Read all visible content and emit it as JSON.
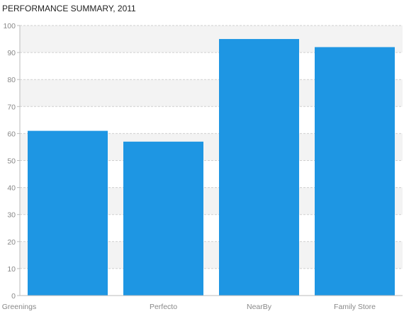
{
  "chart_data": {
    "type": "bar",
    "title": "PERFORMANCE SUMMARY, 2011",
    "xlabel": "",
    "ylabel": "",
    "categories": [
      "Greenings",
      "Perfecto",
      "NearBy",
      "Family Store"
    ],
    "values": [
      61,
      57,
      95,
      92
    ],
    "ylim": [
      0,
      100
    ],
    "yticks": [
      0,
      10,
      20,
      30,
      40,
      50,
      60,
      70,
      80,
      90,
      100
    ],
    "grid": true,
    "alternate_bands": true,
    "legend": "none",
    "colors": {
      "bar": "#1e96e3",
      "band": "#f3f3f3",
      "grid": "#cfcfcf",
      "axis": "#bbbbbb"
    }
  }
}
